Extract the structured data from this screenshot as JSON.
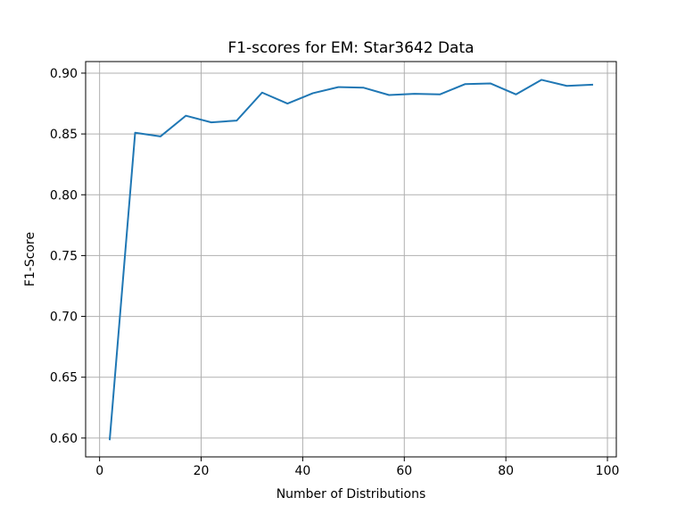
{
  "chart_data": {
    "type": "line",
    "title": "F1-scores for EM: Star3642 Data",
    "xlabel": "Number of Distributions",
    "ylabel": "F1-Score",
    "xlim": [
      -2.75,
      101.75
    ],
    "ylim": [
      0.5845,
      0.9095
    ],
    "xticks": [
      0,
      20,
      40,
      60,
      80,
      100
    ],
    "xtick_labels": [
      "0",
      "20",
      "40",
      "60",
      "80",
      "100"
    ],
    "yticks": [
      0.6,
      0.65,
      0.7,
      0.75,
      0.8,
      0.85,
      0.9
    ],
    "ytick_labels": [
      "0.60",
      "0.65",
      "0.70",
      "0.75",
      "0.80",
      "0.85",
      "0.90"
    ],
    "grid": true,
    "color": "#1f77b4",
    "x": [
      2,
      7,
      12,
      17,
      22,
      27,
      32,
      37,
      42,
      47,
      52,
      57,
      62,
      67,
      72,
      77,
      82,
      87,
      92,
      97
    ],
    "y": [
      0.599,
      0.851,
      0.848,
      0.865,
      0.8595,
      0.861,
      0.884,
      0.875,
      0.8835,
      0.8885,
      0.888,
      0.882,
      0.883,
      0.8825,
      0.891,
      0.8915,
      0.8825,
      0.8945,
      0.8895,
      0.8905
    ]
  }
}
